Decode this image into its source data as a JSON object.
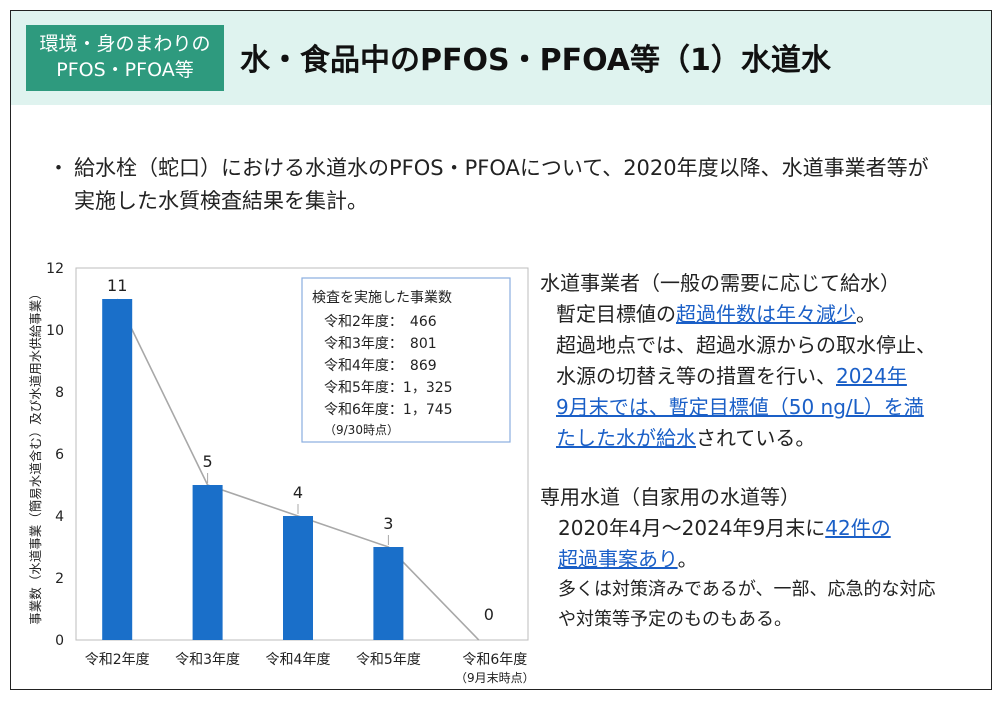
{
  "header": {
    "badge_line1": "環境・身のまわりの",
    "badge_line2": "PFOS・PFOA等",
    "title": "水・食品中のPFOS・PFOA等（1）水道水"
  },
  "intro": {
    "bullet": "・",
    "text": "給水栓（蛇口）における水道水のPFOS・PFOAについて、2020年度以降、水道事業者等が実施した水質検査結果を集計。"
  },
  "chart_data": {
    "type": "bar",
    "categories": [
      "令和2年度",
      "令和3年度",
      "令和4年度",
      "令和5年度",
      "令和6年度"
    ],
    "category_note": "（9月末時点）",
    "values": [
      11,
      5,
      4,
      3,
      0
    ],
    "value_labels": [
      "11",
      "5",
      "4",
      "3",
      "0"
    ],
    "ylabel": "事業数（水道事業（簡易水道含む）及び水道用水供給事業）",
    "ylim": [
      0,
      12
    ],
    "yticks": [
      "0",
      "2",
      "4",
      "6",
      "8",
      "10",
      "12"
    ],
    "bar_color": "#1a6fc9",
    "line_color": "#a8a8a8",
    "legend": {
      "title": "検査を実施した事業数",
      "rows": [
        "令和2年度：　466",
        "令和3年度：　801",
        "令和4年度：　869",
        "令和5年度：1，325",
        "令和6年度：1，745"
      ],
      "note": "（9/30時点）"
    }
  },
  "right": {
    "s1_heading": "水道事業者（一般の需要に応じて給水）",
    "s1_l1_pre": "暫定目標値の",
    "s1_l1_hl": "超過件数は年々減少",
    "s1_l1_post": "。",
    "s1_l2": "超過地点では、超過水源からの取水停止、",
    "s1_l3_pre": "水源の切替え等の措置を行い、",
    "s1_l3_hl": "2024年",
    "s1_l4_hl": "9月末では、暫定目標値（50 ng/L）を満",
    "s1_l5_hl": "たした水が給水",
    "s1_l5_post": "されている。",
    "s2_heading": "専用水道（自家用の水道等）",
    "s2_l1_pre": "2020年4月～2024年9月末に",
    "s2_l1_hl": "42件の",
    "s2_l2_hl": "超過事案あり",
    "s2_l2_post": "。",
    "s2_l3": "多くは対策済みであるが、一部、応急的な対応",
    "s2_l4": "や対策等予定のものもある。",
    "link_color": "#1a5fc7"
  }
}
